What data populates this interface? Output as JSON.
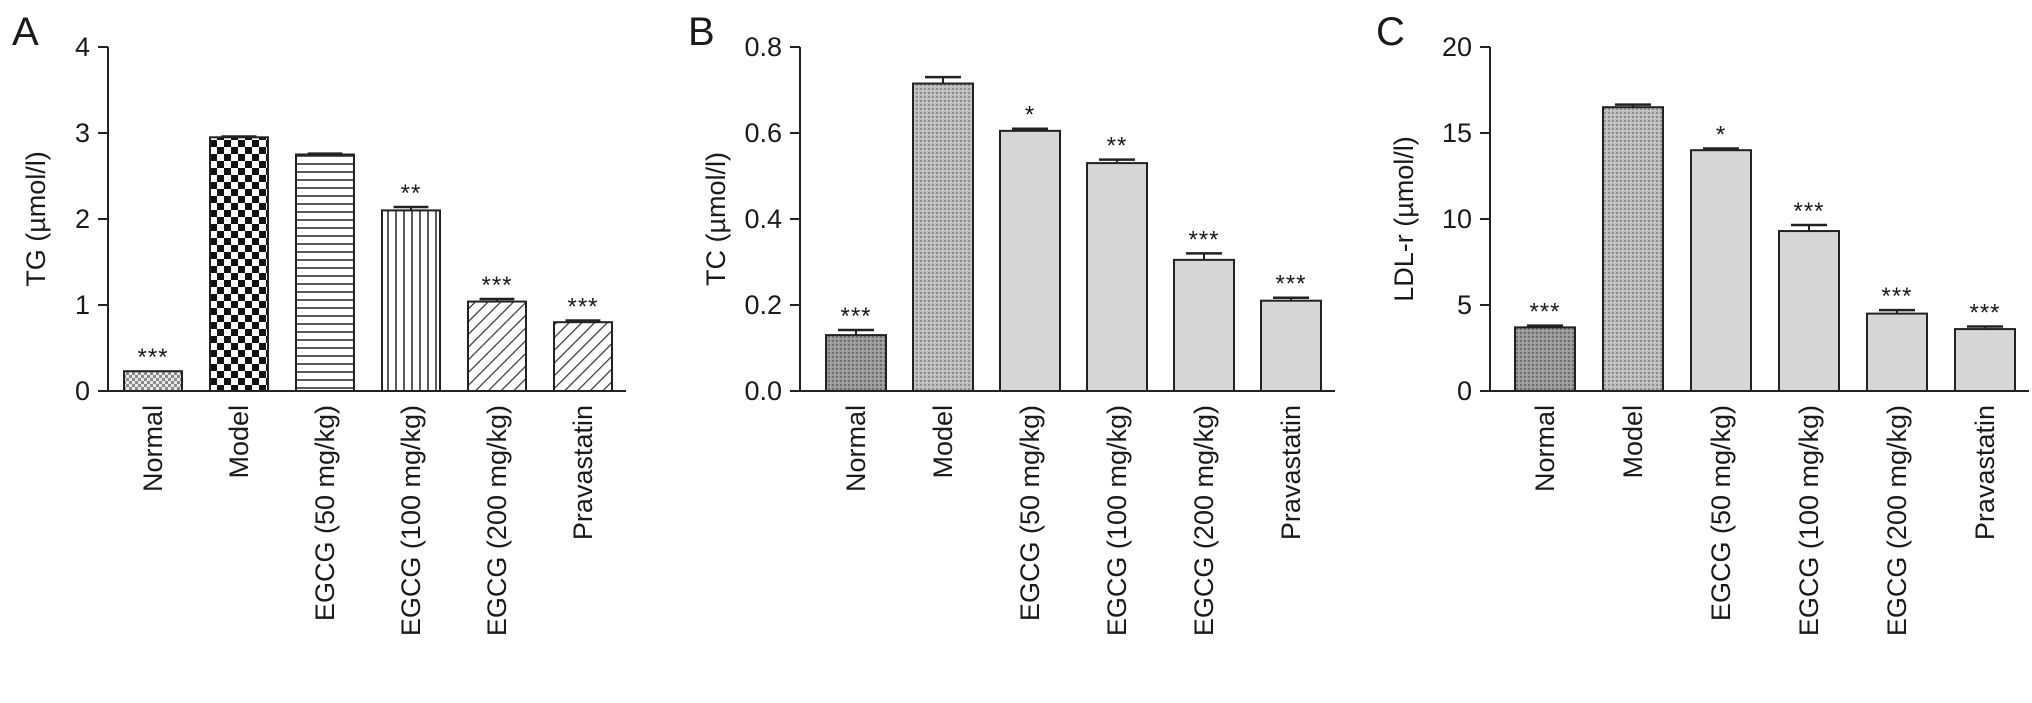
{
  "chart_data": [
    {
      "type": "bar",
      "panel": "A",
      "ylabel": "TG (µmol/l)",
      "ylim": [
        0,
        4
      ],
      "yticks": [
        "0",
        "1",
        "2",
        "3",
        "4"
      ],
      "categories": [
        "Normal",
        "Model",
        "EGCG (50 mg/kg)",
        "EGCG (100 mg/kg)",
        "EGCG (200 mg/kg)",
        "Pravastatin"
      ],
      "values": [
        0.23,
        2.95,
        2.75,
        2.1,
        1.04,
        0.8
      ],
      "errors": [
        0.0,
        0.01,
        0.01,
        0.04,
        0.03,
        0.02
      ],
      "significance": [
        "***",
        "",
        "",
        "**",
        "***",
        "***"
      ],
      "patterns": [
        "fine-check",
        "checker",
        "horizontal",
        "vertical",
        "diagonal",
        "diagonal"
      ]
    },
    {
      "type": "bar",
      "panel": "B",
      "ylabel": "TC (µmol/l)",
      "ylim": [
        0,
        0.8
      ],
      "yticks": [
        "0.0",
        "0.2",
        "0.4",
        "0.6",
        "0.8"
      ],
      "categories": [
        "Normal",
        "Model",
        "EGCG (50 mg/kg)",
        "EGCG (100 mg/kg)",
        "EGCG (200 mg/kg)",
        "Pravastatin"
      ],
      "values": [
        0.13,
        0.715,
        0.605,
        0.53,
        0.305,
        0.21
      ],
      "errors": [
        0.012,
        0.015,
        0.005,
        0.008,
        0.015,
        0.007
      ],
      "significance": [
        "***",
        "",
        "*",
        "**",
        "***",
        "***"
      ],
      "patterns": [
        "dark-stipple",
        "stipple",
        "solid-gray",
        "solid-gray",
        "solid-gray",
        "solid-gray"
      ]
    },
    {
      "type": "bar",
      "panel": "C",
      "ylabel": "LDL-r (µmol/l)",
      "ylim": [
        0,
        20
      ],
      "yticks": [
        "0",
        "5",
        "10",
        "15",
        "20"
      ],
      "categories": [
        "Normal",
        "Model",
        "EGCG (50 mg/kg)",
        "EGCG (100 mg/kg)",
        "EGCG (200 mg/kg)",
        "Pravastatin"
      ],
      "values": [
        3.7,
        16.5,
        14.0,
        9.3,
        4.5,
        3.6
      ],
      "errors": [
        0.1,
        0.15,
        0.1,
        0.35,
        0.2,
        0.15
      ],
      "significance": [
        "***",
        "",
        "*",
        "***",
        "***",
        "***"
      ],
      "patterns": [
        "dark-stipple",
        "stipple",
        "solid-gray",
        "solid-gray",
        "solid-gray",
        "solid-gray"
      ]
    }
  ]
}
